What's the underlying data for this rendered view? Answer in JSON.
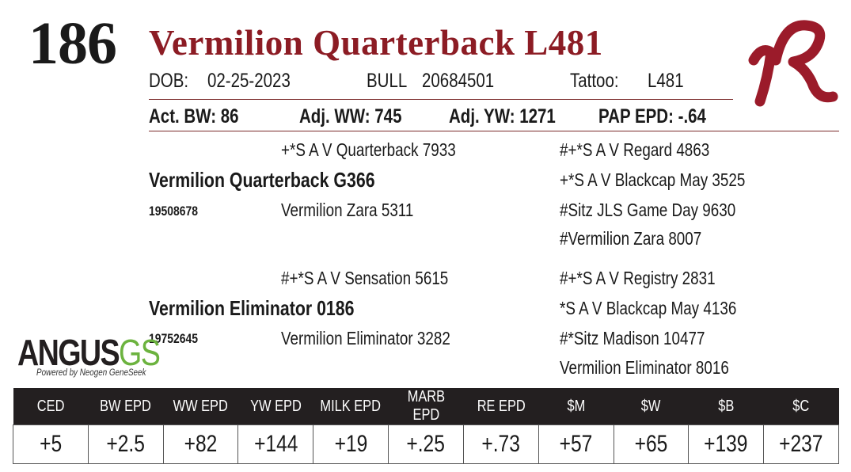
{
  "lot": "186",
  "title": "Vermilion Quarterback L481",
  "info": {
    "dob_label": "DOB:",
    "dob": "02-25-2023",
    "sex": "BULL",
    "reg": "20684501",
    "tattoo_label": "Tattoo:",
    "tattoo": "L481"
  },
  "performance": [
    "Act. BW: 86",
    "Adj. WW: 745",
    "Adj. YW: 1271",
    "PAP EPD: -.64"
  ],
  "pedigree": {
    "sire": {
      "name": "Vermilion Quarterback G366",
      "reg": "19508678",
      "sire": "+*S A V Quarterback 7933",
      "dam": "Vermilion Zara 5311",
      "ancestors": [
        "#+*S A V Regard 4863",
        "+*S A V Blackcap May 3525",
        "#Sitz JLS Game Day 9630",
        "#Vermilion Zara 8007"
      ]
    },
    "dam": {
      "name": "Vermilion Eliminator 0186",
      "reg": "19752645",
      "sire": "#+*S A V Sensation 5615",
      "dam": "Vermilion Eliminator 3282",
      "ancestors": [
        "#+*S A V Registry 2831",
        "*S A V Blackcap May 4136",
        "#*Sitz Madison 10477",
        "Vermilion Eliminator 8016"
      ]
    }
  },
  "logo": {
    "angus": "ANGUS",
    "gs": "GS",
    "tagline": "Powered by Neogen GeneSeek"
  },
  "epd_table": {
    "headers": [
      "CED",
      "BW EPD",
      "WW EPD",
      "YW EPD",
      "MILK EPD",
      "MARB EPD",
      "RE EPD",
      "$M",
      "$W",
      "$B",
      "$C"
    ],
    "values": [
      "+5",
      "+2.5",
      "+82",
      "+144",
      "+19",
      "+.25",
      "+.73",
      "+57",
      "+65",
      "+139",
      "+237"
    ]
  }
}
